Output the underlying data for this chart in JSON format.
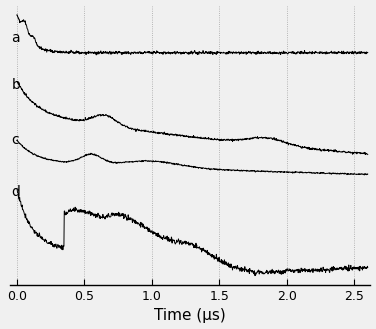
{
  "xlim": [
    -0.05,
    2.62
  ],
  "xticks": [
    0.0,
    0.5,
    1.0,
    1.5,
    2.0,
    2.5
  ],
  "xlabel": "Time (μs)",
  "xlabel_fontsize": 11,
  "tick_fontsize": 9,
  "bg_color": "#f0f0f0",
  "line_color": "#000000",
  "grid_color": "#999999",
  "label_a": "a",
  "label_b": "b",
  "label_c": "c",
  "label_d": "d",
  "label_fontsize": 10,
  "ylim": [
    -0.55,
    1.05
  ]
}
